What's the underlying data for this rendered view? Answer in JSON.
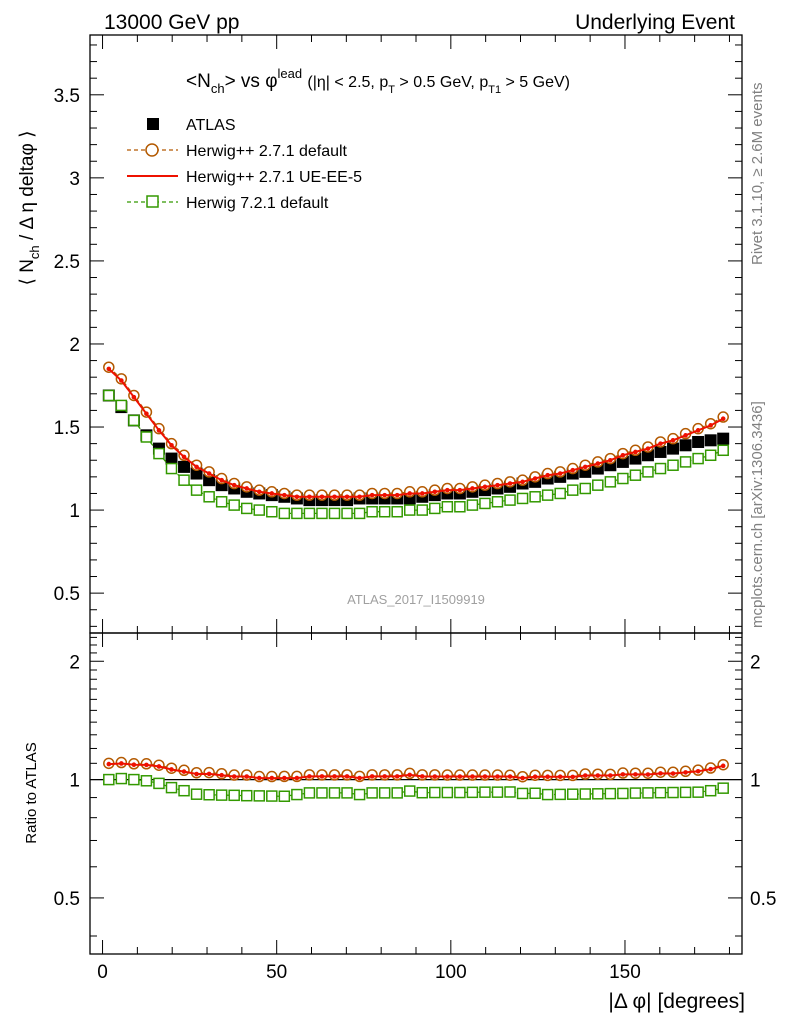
{
  "header": {
    "left": "13000 GeV pp",
    "right": "Underlying Event"
  },
  "title": {
    "main": "<Nch> vs φlead",
    "cuts": "(|η| < 2.5, pT > 0.5 GeV, pT1 > 5 GeV)",
    "main_parts": [
      "<N",
      "ch",
      "> vs φ",
      "lead"
    ],
    "cuts_parts": [
      "(|η| < 2.5, p",
      "T",
      " > 0.5 GeV, p",
      "T1",
      " > 5 GeV)"
    ]
  },
  "side_labels": {
    "rivet": "Rivet 3.1.10, ≥ 2.6M events",
    "mcplots": "mcplots.cern.ch [arXiv:1306.3436]"
  },
  "watermark": "ATLAS_2017_I1509919",
  "axes": {
    "ylabel_top": "⟨ Nch / Δ η deltaφ ⟩",
    "ylabel_top_parts": [
      "⟨ N",
      "ch",
      " / Δ η deltaφ ⟩"
    ],
    "ylabel_bottom": "Ratio to ATLAS",
    "xlabel": "|Δ φ| [degrees]"
  },
  "legend": [
    {
      "label": "ATLAS",
      "color": "#000000",
      "marker": "filled-square"
    },
    {
      "label": "Herwig++ 2.7.1 default",
      "color": "#b35900",
      "marker": "open-circle-dashed"
    },
    {
      "label": "Herwig++ 2.7.1 UE-EE-5",
      "color": "#ee1100",
      "marker": "solid-line"
    },
    {
      "label": "Herwig 7.2.1 default",
      "color": "#339900",
      "marker": "open-square-dashed"
    }
  ],
  "chart_data": {
    "type": "scatter",
    "x_range": [
      -3.6,
      183.6
    ],
    "main_y_range": [
      0.26,
      3.86
    ],
    "ratio_y_range": [
      0.36,
      2.36
    ],
    "main_y_ticks": [
      "0.5",
      "1",
      "1.5",
      "2",
      "2.5",
      "3",
      "3.5"
    ],
    "ratio_y_ticks": [
      "0.5",
      "1",
      "2"
    ],
    "x_ticks": [
      "0",
      "50",
      "100",
      "150"
    ],
    "x": [
      1.8,
      5.4,
      9.0,
      12.6,
      16.2,
      19.8,
      23.4,
      27.0,
      30.6,
      34.2,
      37.8,
      41.4,
      45.0,
      48.6,
      52.2,
      55.8,
      59.4,
      63.0,
      66.6,
      70.2,
      73.8,
      77.4,
      81.0,
      84.6,
      88.2,
      91.8,
      95.4,
      99.0,
      102.6,
      106.2,
      109.8,
      113.4,
      117.0,
      120.6,
      124.2,
      127.8,
      131.4,
      135.0,
      138.6,
      142.2,
      145.8,
      149.4,
      153.0,
      156.6,
      160.2,
      163.8,
      167.4,
      171.0,
      174.6,
      178.2
    ],
    "series": [
      {
        "name": "ATLAS",
        "values": [
          1.69,
          1.62,
          1.54,
          1.45,
          1.37,
          1.31,
          1.26,
          1.22,
          1.18,
          1.15,
          1.13,
          1.11,
          1.1,
          1.09,
          1.08,
          1.07,
          1.06,
          1.06,
          1.06,
          1.06,
          1.07,
          1.07,
          1.07,
          1.07,
          1.07,
          1.08,
          1.09,
          1.1,
          1.1,
          1.11,
          1.12,
          1.13,
          1.14,
          1.16,
          1.17,
          1.19,
          1.2,
          1.22,
          1.23,
          1.25,
          1.27,
          1.29,
          1.31,
          1.33,
          1.35,
          1.37,
          1.39,
          1.41,
          1.42,
          1.43
        ]
      },
      {
        "name": "Herwig++ 2.7.1 default",
        "values": [
          1.86,
          1.79,
          1.69,
          1.59,
          1.49,
          1.4,
          1.33,
          1.27,
          1.23,
          1.19,
          1.16,
          1.14,
          1.12,
          1.11,
          1.1,
          1.09,
          1.09,
          1.09,
          1.09,
          1.09,
          1.09,
          1.1,
          1.1,
          1.1,
          1.11,
          1.11,
          1.12,
          1.13,
          1.13,
          1.14,
          1.15,
          1.16,
          1.17,
          1.18,
          1.2,
          1.22,
          1.23,
          1.25,
          1.27,
          1.29,
          1.31,
          1.34,
          1.36,
          1.38,
          1.41,
          1.43,
          1.46,
          1.49,
          1.52,
          1.56
        ]
      },
      {
        "name": "Herwig++ 2.7.1 UE-EE-5",
        "values": [
          1.85,
          1.78,
          1.68,
          1.58,
          1.48,
          1.39,
          1.32,
          1.26,
          1.22,
          1.18,
          1.15,
          1.13,
          1.11,
          1.1,
          1.09,
          1.08,
          1.08,
          1.08,
          1.08,
          1.08,
          1.08,
          1.09,
          1.09,
          1.09,
          1.1,
          1.1,
          1.11,
          1.12,
          1.12,
          1.13,
          1.14,
          1.15,
          1.16,
          1.17,
          1.19,
          1.21,
          1.22,
          1.24,
          1.26,
          1.28,
          1.3,
          1.33,
          1.35,
          1.37,
          1.4,
          1.42,
          1.45,
          1.48,
          1.51,
          1.55
        ]
      },
      {
        "name": "Herwig 7.2.1 default",
        "values": [
          1.69,
          1.63,
          1.54,
          1.44,
          1.34,
          1.25,
          1.18,
          1.12,
          1.08,
          1.05,
          1.03,
          1.01,
          1.0,
          0.99,
          0.98,
          0.98,
          0.98,
          0.98,
          0.98,
          0.98,
          0.98,
          0.99,
          0.99,
          0.99,
          1.0,
          1.0,
          1.01,
          1.02,
          1.02,
          1.03,
          1.04,
          1.05,
          1.06,
          1.07,
          1.08,
          1.09,
          1.1,
          1.12,
          1.13,
          1.15,
          1.17,
          1.19,
          1.21,
          1.23,
          1.25,
          1.27,
          1.29,
          1.31,
          1.33,
          1.36
        ]
      }
    ],
    "ratios": [
      {
        "name": "Herwig++ 2.7.1 default",
        "values": [
          1.1,
          1.105,
          1.097,
          1.097,
          1.088,
          1.069,
          1.056,
          1.041,
          1.042,
          1.035,
          1.027,
          1.027,
          1.018,
          1.018,
          1.019,
          1.019,
          1.028,
          1.028,
          1.028,
          1.028,
          1.019,
          1.028,
          1.028,
          1.028,
          1.037,
          1.028,
          1.028,
          1.027,
          1.027,
          1.027,
          1.027,
          1.027,
          1.026,
          1.017,
          1.026,
          1.025,
          1.025,
          1.025,
          1.033,
          1.032,
          1.031,
          1.039,
          1.038,
          1.038,
          1.044,
          1.044,
          1.05,
          1.057,
          1.07,
          1.091
        ]
      },
      {
        "name": "Herwig++ 2.7.1 UE-EE-5",
        "values": [
          1.095,
          1.099,
          1.091,
          1.09,
          1.08,
          1.061,
          1.048,
          1.033,
          1.034,
          1.026,
          1.018,
          1.018,
          1.009,
          1.009,
          1.009,
          1.009,
          1.019,
          1.019,
          1.019,
          1.019,
          1.009,
          1.019,
          1.019,
          1.019,
          1.028,
          1.019,
          1.018,
          1.018,
          1.018,
          1.018,
          1.018,
          1.018,
          1.018,
          1.009,
          1.017,
          1.017,
          1.017,
          1.016,
          1.024,
          1.024,
          1.024,
          1.031,
          1.031,
          1.03,
          1.037,
          1.036,
          1.043,
          1.05,
          1.063,
          1.084
        ]
      },
      {
        "name": "Herwig 7.2.1 default",
        "values": [
          1.0,
          1.006,
          1.0,
          0.993,
          0.978,
          0.954,
          0.937,
          0.918,
          0.915,
          0.913,
          0.912,
          0.91,
          0.909,
          0.908,
          0.907,
          0.916,
          0.925,
          0.925,
          0.925,
          0.925,
          0.916,
          0.925,
          0.925,
          0.925,
          0.935,
          0.926,
          0.927,
          0.927,
          0.927,
          0.928,
          0.929,
          0.929,
          0.93,
          0.922,
          0.923,
          0.916,
          0.917,
          0.918,
          0.919,
          0.92,
          0.921,
          0.922,
          0.924,
          0.925,
          0.926,
          0.927,
          0.928,
          0.929,
          0.937,
          0.951
        ]
      }
    ]
  }
}
